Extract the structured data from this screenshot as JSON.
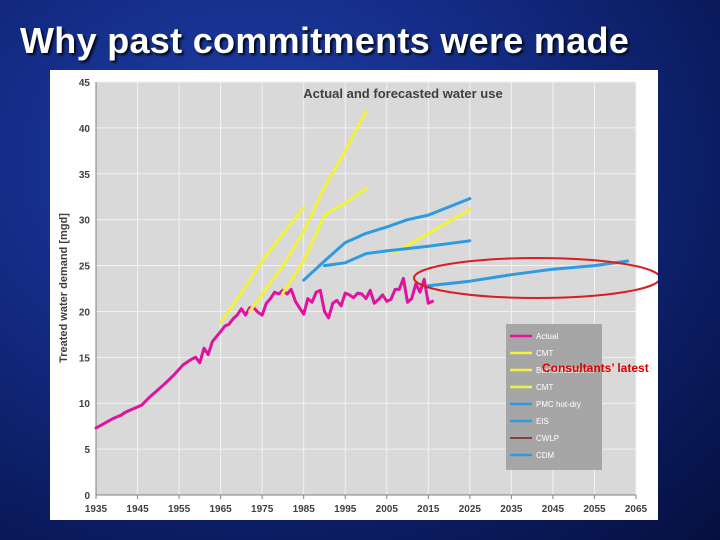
{
  "slide": {
    "title": "Why past commitments were made"
  },
  "annotation": {
    "text": "Consultants’ latest",
    "color": "#e00000"
  },
  "colors": {
    "plot_bg": "#d9d9d9",
    "grid": "#f2f2f2",
    "actual": "#e0129e",
    "yellow": "#f2f23c",
    "blue": "#2e9be0",
    "cwlp": "#7a1f1f",
    "legend_bg": "#a6a6a6"
  },
  "chart_data": {
    "type": "line",
    "title": "Actual and forecasted water use",
    "xlabel": "",
    "ylabel": "Treated water demand [mgd]",
    "xlim": [
      1935,
      2065
    ],
    "ylim": [
      0,
      45
    ],
    "xticks": [
      1935,
      1945,
      1955,
      1965,
      1975,
      1985,
      1995,
      2005,
      2015,
      2025,
      2035,
      2045,
      2055,
      2065
    ],
    "yticks": [
      0,
      5,
      10,
      15,
      20,
      25,
      30,
      35,
      40,
      45
    ],
    "grid": true,
    "legend_position": "right",
    "series": [
      {
        "name": "Actual",
        "color": "#e0129e",
        "width": 3,
        "points": [
          [
            1935,
            7.3
          ],
          [
            1937,
            7.8
          ],
          [
            1939,
            8.3
          ],
          [
            1941,
            8.7
          ],
          [
            1942,
            9.0
          ],
          [
            1944,
            9.4
          ],
          [
            1946,
            9.8
          ],
          [
            1948,
            10.7
          ],
          [
            1950,
            11.5
          ],
          [
            1952,
            12.3
          ],
          [
            1954,
            13.2
          ],
          [
            1956,
            14.2
          ],
          [
            1958,
            14.8
          ],
          [
            1959,
            15.0
          ],
          [
            1960,
            14.4
          ],
          [
            1961,
            16.0
          ],
          [
            1962,
            15.3
          ],
          [
            1963,
            16.7
          ],
          [
            1965,
            17.8
          ],
          [
            1966,
            18.4
          ],
          [
            1967,
            18.6
          ],
          [
            1968,
            19.2
          ],
          [
            1969,
            19.6
          ],
          [
            1970,
            20.3
          ],
          [
            1971,
            19.6
          ],
          [
            1972,
            20.4
          ],
          [
            1973,
            20.4
          ],
          [
            1974,
            19.9
          ],
          [
            1975,
            19.6
          ],
          [
            1976,
            20.9
          ],
          [
            1977,
            21.4
          ],
          [
            1978,
            22.1
          ],
          [
            1979,
            21.9
          ],
          [
            1980,
            22.3
          ],
          [
            1981,
            21.9
          ],
          [
            1982,
            22.4
          ],
          [
            1983,
            21.1
          ],
          [
            1984,
            20.4
          ],
          [
            1985,
            19.7
          ],
          [
            1986,
            21.4
          ],
          [
            1987,
            21.0
          ],
          [
            1988,
            22.1
          ],
          [
            1989,
            22.3
          ],
          [
            1990,
            20.0
          ],
          [
            1991,
            19.3
          ],
          [
            1992,
            20.9
          ],
          [
            1993,
            21.2
          ],
          [
            1994,
            20.6
          ],
          [
            1995,
            22.0
          ],
          [
            1996,
            21.8
          ],
          [
            1997,
            21.5
          ],
          [
            1998,
            22.0
          ],
          [
            1999,
            21.9
          ],
          [
            2000,
            21.4
          ],
          [
            2001,
            22.3
          ],
          [
            2002,
            20.9
          ],
          [
            2003,
            21.3
          ],
          [
            2004,
            21.8
          ],
          [
            2005,
            21.1
          ],
          [
            2006,
            21.3
          ],
          [
            2007,
            22.4
          ],
          [
            2008,
            22.4
          ],
          [
            2009,
            23.6
          ],
          [
            2010,
            21.0
          ],
          [
            2011,
            21.4
          ],
          [
            2012,
            23.0
          ],
          [
            2013,
            22.1
          ],
          [
            2014,
            23.5
          ],
          [
            2015,
            20.9
          ],
          [
            2016,
            21.1
          ]
        ]
      },
      {
        "name": "CMT",
        "color": "#f2f23c",
        "width": 3,
        "points": [
          [
            1965,
            18.8
          ],
          [
            1970,
            22.0
          ],
          [
            1975,
            25.5
          ],
          [
            1980,
            28.5
          ],
          [
            1985,
            31.3
          ]
        ]
      },
      {
        "name": "BurnsMcDonnell",
        "color": "#f2f23c",
        "width": 3,
        "points": [
          [
            1972,
            20.0
          ],
          [
            1980,
            25.0
          ],
          [
            1985,
            28.7
          ],
          [
            1990,
            33.5
          ],
          [
            1995,
            37.5
          ],
          [
            2000,
            41.8
          ]
        ]
      },
      {
        "name": "CMT",
        "color": "#f2f23c",
        "width": 3,
        "points": [
          [
            1980,
            22.0
          ],
          [
            1985,
            25.5
          ],
          [
            1990,
            30.5
          ],
          [
            1995,
            31.8
          ],
          [
            2000,
            33.4
          ]
        ]
      },
      {
        "name": "",
        "color": "#f2f23c",
        "width": 3,
        "points": [
          [
            2007,
            26.4
          ],
          [
            2015,
            28.5
          ],
          [
            2025,
            31.1
          ]
        ]
      },
      {
        "name": "PMC hot-dry",
        "color": "#2e9be0",
        "width": 3,
        "points": [
          [
            1985,
            23.4
          ],
          [
            1990,
            25.5
          ],
          [
            1995,
            27.5
          ],
          [
            2000,
            28.5
          ],
          [
            2005,
            29.2
          ],
          [
            2010,
            30.0
          ],
          [
            2015,
            30.5
          ],
          [
            2025,
            32.3
          ]
        ]
      },
      {
        "name": "EIS",
        "color": "#2e9be0",
        "width": 3,
        "points": [
          [
            1990,
            25.0
          ],
          [
            1995,
            25.3
          ],
          [
            2000,
            26.3
          ],
          [
            2005,
            26.6
          ],
          [
            2015,
            27.1
          ],
          [
            2025,
            27.7
          ]
        ]
      },
      {
        "name": "CWLP",
        "color": "#7a1f1f",
        "width": 1.5,
        "points": []
      },
      {
        "name": "CDM",
        "color": "#2e9be0",
        "width": 3,
        "points": [
          [
            2015,
            22.8
          ],
          [
            2025,
            23.3
          ],
          [
            2035,
            24.0
          ],
          [
            2045,
            24.6
          ],
          [
            2055,
            25.0
          ],
          [
            2063,
            25.5
          ]
        ]
      }
    ]
  }
}
